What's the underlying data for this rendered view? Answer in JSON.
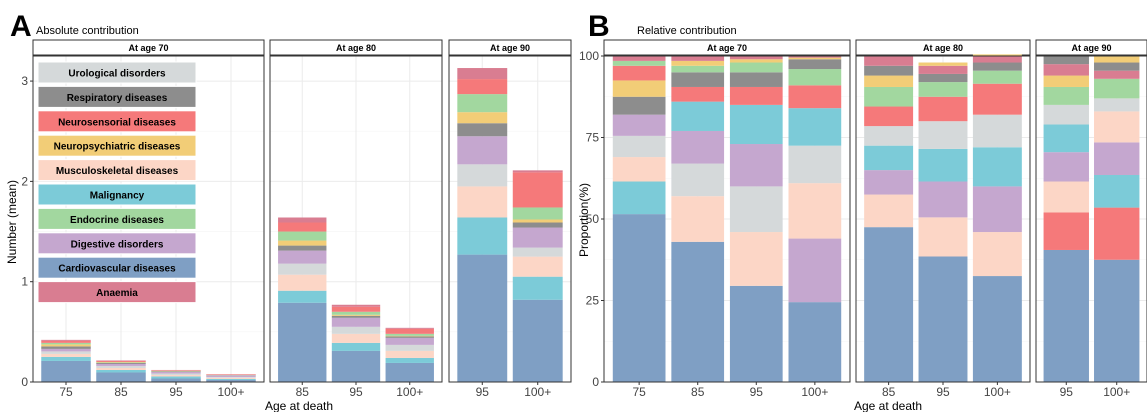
{
  "colors": {
    "Anaemia": "#d97d91",
    "Cardiovascular diseases": "#7f9fc4",
    "Digestive disorders": "#c5a7cf",
    "Endocrine diseases": "#a2d79f",
    "Malignancy": "#7ccbd8",
    "Musculoskeletal diseases": "#fcd6c6",
    "Neuropsychiatric diseases": "#f2cd77",
    "Neurosensorial diseases": "#f5797a",
    "Respiratory diseases": "#8d8d8d",
    "Urological disorders": "#d5d9da"
  },
  "chart_data": [
    {
      "type": "bar",
      "stacked": true,
      "panel_label": "A",
      "subtitle": "Absolute contribution",
      "xlabel": "Age at death",
      "ylabel": "Number (mean)",
      "ylim": [
        0,
        3.25
      ],
      "yticks": [
        "0",
        "1",
        "2",
        "3"
      ],
      "ytick_values": [
        0,
        1,
        2,
        3
      ],
      "grid": true,
      "legend": {
        "placement": "inside-top-left",
        "entries": [
          "Urological disorders",
          "Respiratory diseases",
          "Neurosensorial diseases",
          "Neuropsychiatric diseases",
          "Musculoskeletal diseases",
          "Malignancy",
          "Endocrine diseases",
          "Digestive disorders",
          "Cardiovascular diseases",
          "Anaemia"
        ]
      },
      "stack_order": [
        "Cardiovascular diseases",
        "Malignancy",
        "Musculoskeletal diseases",
        "Urological disorders",
        "Digestive disorders",
        "Respiratory diseases",
        "Neuropsychiatric diseases",
        "Endocrine diseases",
        "Neurosensorial diseases",
        "Anaemia"
      ],
      "facets": [
        {
          "title": "At age 70",
          "categories": [
            "75",
            "85",
            "95",
            "100+"
          ],
          "stacks": [
            {
              "Cardiovascular diseases": 0.21,
              "Malignancy": 0.04,
              "Musculoskeletal diseases": 0.03,
              "Urological disorders": 0.025,
              "Digestive disorders": 0.025,
              "Respiratory diseases": 0.025,
              "Neuropsychiatric diseases": 0.02,
              "Endocrine diseases": 0.015,
              "Neurosensorial diseases": 0.02,
              "Anaemia": 0.01
            },
            {
              "Cardiovascular diseases": 0.095,
              "Malignancy": 0.025,
              "Musculoskeletal diseases": 0.02,
              "Urological disorders": 0.02,
              "Digestive disorders": 0.02,
              "Respiratory diseases": 0.01,
              "Neuropsychiatric diseases": 0.005,
              "Endocrine diseases": 0.005,
              "Neurosensorial diseases": 0.01,
              "Anaemia": 0.005
            },
            {
              "Cardiovascular diseases": 0.035,
              "Malignancy": 0.02,
              "Musculoskeletal diseases": 0.015,
              "Urological disorders": 0.015,
              "Digestive disorders": 0.015,
              "Respiratory diseases": 0.005,
              "Neuropsychiatric diseases": 0.003,
              "Endocrine diseases": 0.004,
              "Neurosensorial diseases": 0.006,
              "Anaemia": 0.002
            },
            {
              "Cardiovascular diseases": 0.02,
              "Malignancy": 0.01,
              "Musculoskeletal diseases": 0.012,
              "Urological disorders": 0.008,
              "Digestive disorders": 0.015,
              "Respiratory diseases": 0.002,
              "Neuropsychiatric diseases": 0.001,
              "Endocrine diseases": 0.003,
              "Neurosensorial diseases": 0.006,
              "Anaemia": 0.001
            }
          ]
        },
        {
          "title": "At age 80",
          "categories": [
            "85",
            "95",
            "100+"
          ],
          "stacks": [
            {
              "Cardiovascular diseases": 0.79,
              "Malignancy": 0.12,
              "Musculoskeletal diseases": 0.16,
              "Urological disorders": 0.11,
              "Digestive disorders": 0.13,
              "Respiratory diseases": 0.05,
              "Neuropsychiatric diseases": 0.05,
              "Endocrine diseases": 0.09,
              "Neurosensorial diseases": 0.09,
              "Anaemia": 0.05
            },
            {
              "Cardiovascular diseases": 0.31,
              "Malignancy": 0.08,
              "Musculoskeletal diseases": 0.09,
              "Urological disorders": 0.07,
              "Digestive disorders": 0.09,
              "Respiratory diseases": 0.02,
              "Neuropsychiatric diseases": 0.01,
              "Endocrine diseases": 0.03,
              "Neurosensorial diseases": 0.05,
              "Anaemia": 0.02
            },
            {
              "Cardiovascular diseases": 0.19,
              "Malignancy": 0.05,
              "Musculoskeletal diseases": 0.07,
              "Urological disorders": 0.06,
              "Digestive disorders": 0.07,
              "Respiratory diseases": 0.015,
              "Neuropsychiatric diseases": 0.005,
              "Endocrine diseases": 0.02,
              "Neurosensorial diseases": 0.05,
              "Anaemia": 0.01
            }
          ]
        },
        {
          "title": "At age 90",
          "categories": [
            "95",
            "100+"
          ],
          "stacks": [
            {
              "Cardiovascular diseases": 1.27,
              "Malignancy": 0.37,
              "Musculoskeletal diseases": 0.31,
              "Urological disorders": 0.22,
              "Digestive disorders": 0.28,
              "Respiratory diseases": 0.13,
              "Neuropsychiatric diseases": 0.11,
              "Endocrine diseases": 0.18,
              "Neurosensorial diseases": 0.15,
              "Anaemia": 0.11
            },
            {
              "Cardiovascular diseases": 0.82,
              "Malignancy": 0.23,
              "Musculoskeletal diseases": 0.2,
              "Urological disorders": 0.09,
              "Digestive disorders": 0.2,
              "Respiratory diseases": 0.05,
              "Neuropsychiatric diseases": 0.03,
              "Endocrine diseases": 0.12,
              "Neurosensorial diseases": 0.35,
              "Anaemia": 0.02
            }
          ]
        }
      ]
    },
    {
      "type": "bar",
      "stacked": true,
      "panel_label": "B",
      "subtitle": "Relative contribution",
      "xlabel": "Age at death",
      "ylabel": "Proportion(%)",
      "ylim": [
        0,
        100
      ],
      "yticks": [
        "0",
        "25",
        "50",
        "75",
        "100"
      ],
      "ytick_values": [
        0,
        25,
        50,
        75,
        100
      ],
      "grid": true,
      "stack_order": [
        "Cardiovascular diseases",
        "Malignancy",
        "Neurosensorial diseases",
        "Musculoskeletal diseases",
        "Digestive disorders",
        "Urological disorders",
        "Malignancy",
        "Digestive disorders",
        "Respiratory diseases",
        "Neuropsychiatric diseases",
        "Endocrine diseases",
        "Neurosensorial diseases",
        "Anaemia"
      ],
      "facets": [
        {
          "title": "At age 70",
          "categories": [
            "75",
            "85",
            "95",
            "100+"
          ],
          "stacks": [
            [
              [
                "Cardiovascular diseases",
                51.5
              ],
              [
                "Malignancy",
                10
              ],
              [
                "Musculoskeletal diseases",
                7.5
              ],
              [
                "Urological disorders",
                6.5
              ],
              [
                "Digestive disorders",
                6.5
              ],
              [
                "Respiratory diseases",
                5.5
              ],
              [
                "Neuropsychiatric diseases",
                5
              ],
              [
                "Neurosensorial diseases",
                4.5
              ],
              [
                "Endocrine diseases",
                1.5
              ],
              [
                "Anaemia",
                1.5
              ]
            ],
            [
              [
                "Cardiovascular diseases",
                43
              ],
              [
                "Musculoskeletal diseases",
                14
              ],
              [
                "Urological disorders",
                10
              ],
              [
                "Digestive disorders",
                10
              ],
              [
                "Malignancy",
                9
              ],
              [
                "Neurosensorial diseases",
                4.5
              ],
              [
                "Respiratory diseases",
                4.5
              ],
              [
                "Endocrine diseases",
                2
              ],
              [
                "Neuropsychiatric diseases",
                1.5
              ],
              [
                "Anaemia",
                1.5
              ]
            ],
            [
              [
                "Cardiovascular diseases",
                29.5
              ],
              [
                "Musculoskeletal diseases",
                16.5
              ],
              [
                "Urological disorders",
                14
              ],
              [
                "Digestive disorders",
                13
              ],
              [
                "Malignancy",
                12
              ],
              [
                "Neurosensorial diseases",
                5.5
              ],
              [
                "Respiratory diseases",
                4.5
              ],
              [
                "Endocrine diseases",
                3
              ],
              [
                "Neuropsychiatric diseases",
                1
              ],
              [
                "Anaemia",
                1
              ]
            ],
            [
              [
                "Cardiovascular diseases",
                24.5
              ],
              [
                "Digestive disorders",
                19.5
              ],
              [
                "Musculoskeletal diseases",
                17
              ],
              [
                "Urological disorders",
                11.5
              ],
              [
                "Malignancy",
                11.5
              ],
              [
                "Neurosensorial diseases",
                7
              ],
              [
                "Endocrine diseases",
                5
              ],
              [
                "Respiratory diseases",
                3
              ],
              [
                "Neuropsychiatric diseases",
                0.5
              ],
              [
                "Anaemia",
                0.5
              ]
            ]
          ]
        },
        {
          "title": "At age 80",
          "categories": [
            "85",
            "95",
            "100+"
          ],
          "stacks": [
            [
              [
                "Cardiovascular diseases",
                47.5
              ],
              [
                "Musculoskeletal diseases",
                10
              ],
              [
                "Digestive disorders",
                7.5
              ],
              [
                "Malignancy",
                7.5
              ],
              [
                "Urological disorders",
                6
              ],
              [
                "Neurosensorial diseases",
                6
              ],
              [
                "Endocrine diseases",
                6
              ],
              [
                "Neuropsychiatric diseases",
                3.5
              ],
              [
                "Respiratory diseases",
                3
              ],
              [
                "Anaemia",
                3
              ]
            ],
            [
              [
                "Cardiovascular diseases",
                38.5
              ],
              [
                "Musculoskeletal diseases",
                12
              ],
              [
                "Digestive disorders",
                11
              ],
              [
                "Malignancy",
                10
              ],
              [
                "Urological disorders",
                8.5
              ],
              [
                "Neurosensorial diseases",
                7.5
              ],
              [
                "Endocrine diseases",
                4.5
              ],
              [
                "Respiratory diseases",
                2.5
              ],
              [
                "Anaemia",
                2.5
              ],
              [
                "Neuropsychiatric diseases",
                1
              ]
            ],
            [
              [
                "Cardiovascular diseases",
                32.5
              ],
              [
                "Musculoskeletal diseases",
                13.5
              ],
              [
                "Digestive disorders",
                14
              ],
              [
                "Malignancy",
                12
              ],
              [
                "Urological disorders",
                10
              ],
              [
                "Neurosensorial diseases",
                9.5
              ],
              [
                "Endocrine diseases",
                4
              ],
              [
                "Respiratory diseases",
                2.5
              ],
              [
                "Anaemia",
                2
              ],
              [
                "Neuropsychiatric diseases",
                0.5
              ]
            ]
          ]
        },
        {
          "title": "At age 90",
          "categories": [
            "95",
            "100+"
          ],
          "stacks": [
            [
              [
                "Cardiovascular diseases",
                40.5
              ],
              [
                "Neurosensorial diseases",
                11.5
              ],
              [
                "Musculoskeletal diseases",
                9.5
              ],
              [
                "Digestive disorders",
                9
              ],
              [
                "Malignancy",
                8.5
              ],
              [
                "Urological disorders",
                6
              ],
              [
                "Endocrine diseases",
                5.5
              ],
              [
                "Neuropsychiatric diseases",
                3.5
              ],
              [
                "Anaemia",
                3.5
              ],
              [
                "Respiratory diseases",
                2.5
              ]
            ],
            [
              [
                "Cardiovascular diseases",
                37.5
              ],
              [
                "Neurosensorial diseases",
                16
              ],
              [
                "Malignancy",
                10
              ],
              [
                "Digestive disorders",
                10
              ],
              [
                "Musculoskeletal diseases",
                9.5
              ],
              [
                "Urological disorders",
                4
              ],
              [
                "Endocrine diseases",
                6
              ],
              [
                "Anaemia",
                2.5
              ],
              [
                "Respiratory diseases",
                2.5
              ],
              [
                "Neuropsychiatric diseases",
                2
              ]
            ]
          ]
        }
      ]
    }
  ]
}
